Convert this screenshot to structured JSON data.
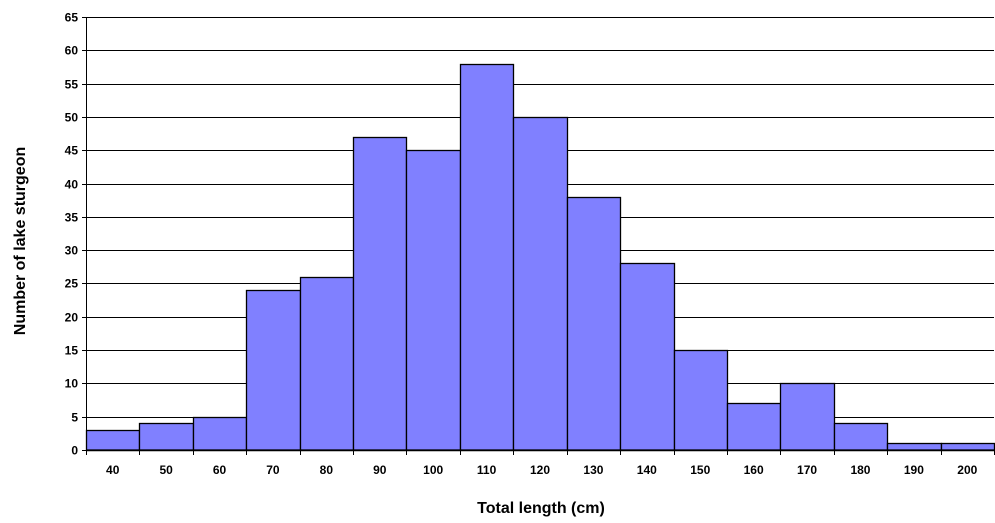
{
  "chart_data": {
    "type": "bar",
    "xlabel": "Total length (cm)",
    "ylabel": "Number of lake sturgeon",
    "categories": [
      "40",
      "50",
      "60",
      "70",
      "80",
      "90",
      "100",
      "110",
      "120",
      "130",
      "140",
      "150",
      "160",
      "170",
      "180",
      "190",
      "200"
    ],
    "values": [
      3,
      4,
      5,
      24,
      26,
      47,
      45,
      58,
      50,
      38,
      28,
      15,
      7,
      10,
      4,
      1,
      1
    ],
    "ylim": [
      0,
      65
    ],
    "yticks": [
      "0",
      "5",
      "10",
      "15",
      "20",
      "25",
      "30",
      "35",
      "40",
      "45",
      "50",
      "55",
      "60",
      "65"
    ],
    "grid": true,
    "legend": "none",
    "bar_color": "#8080FF",
    "bar_edge_color": "#000000"
  }
}
